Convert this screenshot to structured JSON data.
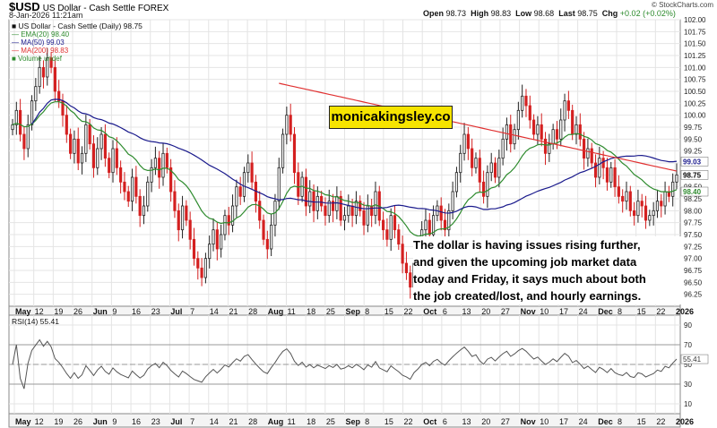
{
  "header": {
    "symbol": "$USD",
    "subtitle": "US Dollar - Cash Settle FOREX",
    "date": "8-Jan-2026 11:21am",
    "open_label": "Open",
    "open": "98.73",
    "high_label": "High",
    "high": "98.83",
    "low_label": "Low",
    "low": "98.68",
    "last": "98.75",
    "chg_label": "Chg",
    "chg": "+0.02 (+0.02%)",
    "credit": "© StockCharts.com"
  },
  "legend": {
    "main": "US Dollar - Cash Settle (Daily) 98.75",
    "ema20": "EMA(20) 98.40",
    "ma50": "MA(50) 99.03",
    "ma200": "MA(200) 98.83",
    "volume": "Volume undef"
  },
  "rsi_label": "RSI(14) 55.41",
  "brand": "monicakingsley.co",
  "note": [
    "The dollar is having issues rising further,",
    "and given the upcoming job market data",
    "today and Friday, it says much about both",
    "the job created/lost, and hourly earnings."
  ],
  "colors": {
    "up": "#222222",
    "down": "#d42020",
    "ema20": "#2e8b2e",
    "ma50": "#1a1a8c",
    "ma200": "#e03030",
    "rsi": "#555555",
    "grid": "#e4e4e4",
    "brand_bg": "#f6e400"
  },
  "chart_data": [
    {
      "type": "candlestick",
      "title": "US Dollar - Cash Settle (Daily)",
      "ylim": [
        96.0,
        102.0
      ],
      "y_ticks": [
        96.25,
        96.5,
        96.75,
        97.0,
        97.25,
        97.5,
        97.75,
        98.0,
        98.25,
        98.5,
        98.75,
        99.0,
        99.25,
        99.5,
        99.75,
        100.0,
        100.25,
        100.5,
        100.75,
        101.0,
        101.25,
        101.5,
        101.75,
        102.0
      ],
      "y_tick_labels": [
        "96.25",
        "96.50",
        "96.75",
        "97.00",
        "97.25",
        "97.50",
        "97.75",
        "98.00",
        "98.25",
        "98.50",
        "98.75",
        "99.00",
        "99.25",
        "99.50",
        "99.75",
        "100.00",
        "100.25",
        "100.50",
        "100.75",
        "101.00",
        "101.25",
        "101.50",
        "101.75",
        "102.00"
      ],
      "x_tick_labels": [
        "May",
        "12",
        "19",
        "26",
        "Jun",
        "9",
        "16",
        "23",
        "Jul",
        "7",
        "14",
        "21",
        "28",
        "Aug",
        "11",
        "18",
        "25",
        "Sep",
        "8",
        "15",
        "22",
        "Oct",
        "6",
        "13",
        "20",
        "27",
        "Nov",
        "10",
        "17",
        "24",
        "Dec",
        "8",
        "15",
        "22",
        "2026"
      ],
      "bold_x_labels": [
        "May",
        "Jun",
        "Jul",
        "Aug",
        "Sep",
        "Oct",
        "Nov",
        "Dec",
        "2026"
      ],
      "closes": [
        99.8,
        100.1,
        99.6,
        99.3,
        99.8,
        100.3,
        100.6,
        101.0,
        100.8,
        101.2,
        101.0,
        100.5,
        100.3,
        100.0,
        99.6,
        99.2,
        99.5,
        99.0,
        99.2,
        99.8,
        99.4,
        98.9,
        99.3,
        99.6,
        99.1,
        98.8,
        99.3,
        98.9,
        98.6,
        98.4,
        98.2,
        98.7,
        98.3,
        97.9,
        98.1,
        98.6,
        98.9,
        99.1,
        98.7,
        99.2,
        98.9,
        98.4,
        98.0,
        97.6,
        98.1,
        97.8,
        97.4,
        97.0,
        96.8,
        96.6,
        97.0,
        97.3,
        97.6,
        97.2,
        97.5,
        97.9,
        97.7,
        98.1,
        98.5,
        98.3,
        98.8,
        99.0,
        98.6,
        98.2,
        97.8,
        97.4,
        97.2,
        97.7,
        98.2,
        98.9,
        99.6,
        100.0,
        99.6,
        98.8,
        98.3,
        98.7,
        98.1,
        98.4,
        98.0,
        98.3,
        98.1,
        97.9,
        98.2,
        98.0,
        98.3,
        97.8,
        97.9,
        98.1,
        97.9,
        98.2,
        98.0,
        97.7,
        98.1,
        97.9,
        98.4,
        97.8,
        97.6,
        97.4,
        97.9,
        97.6,
        97.3,
        96.9,
        96.7,
        96.4,
        96.9,
        97.2,
        97.6,
        97.8,
        97.5,
        97.9,
        98.1,
        97.8,
        97.6,
        98.0,
        98.4,
        98.8,
        99.2,
        99.6,
        99.3,
        98.9,
        99.1,
        98.6,
        98.3,
        98.8,
        99.0,
        98.7,
        99.1,
        99.5,
        99.8,
        99.4,
        99.7,
        100.1,
        100.4,
        100.2,
        99.9,
        99.6,
        99.8,
        99.5,
        99.2,
        99.4,
        99.7,
        99.5,
        99.9,
        100.3,
        100.1,
        99.6,
        99.8,
        99.5,
        99.1,
        99.3,
        99.0,
        98.7,
        99.1,
        98.9,
        98.6,
        98.9,
        98.5,
        98.3,
        98.2,
        98.4,
        98.0,
        97.9,
        98.2,
        98.1,
        97.8,
        97.9,
        98.0,
        98.2,
        98.1,
        98.4,
        98.3,
        98.6,
        98.75
      ],
      "overlays": [
        {
          "name": "EMA(20)",
          "value": 98.4
        },
        {
          "name": "MA(50)",
          "value": 99.03
        },
        {
          "name": "MA(200)",
          "value": 98.83
        }
      ]
    },
    {
      "type": "line",
      "title": "RSI(14)",
      "ylim": [
        0,
        100
      ],
      "y_ticks": [
        10,
        30,
        50,
        70,
        90
      ],
      "y_tick_labels": [
        "10",
        "30",
        "50",
        "70",
        "90"
      ],
      "last": 55.41
    }
  ]
}
